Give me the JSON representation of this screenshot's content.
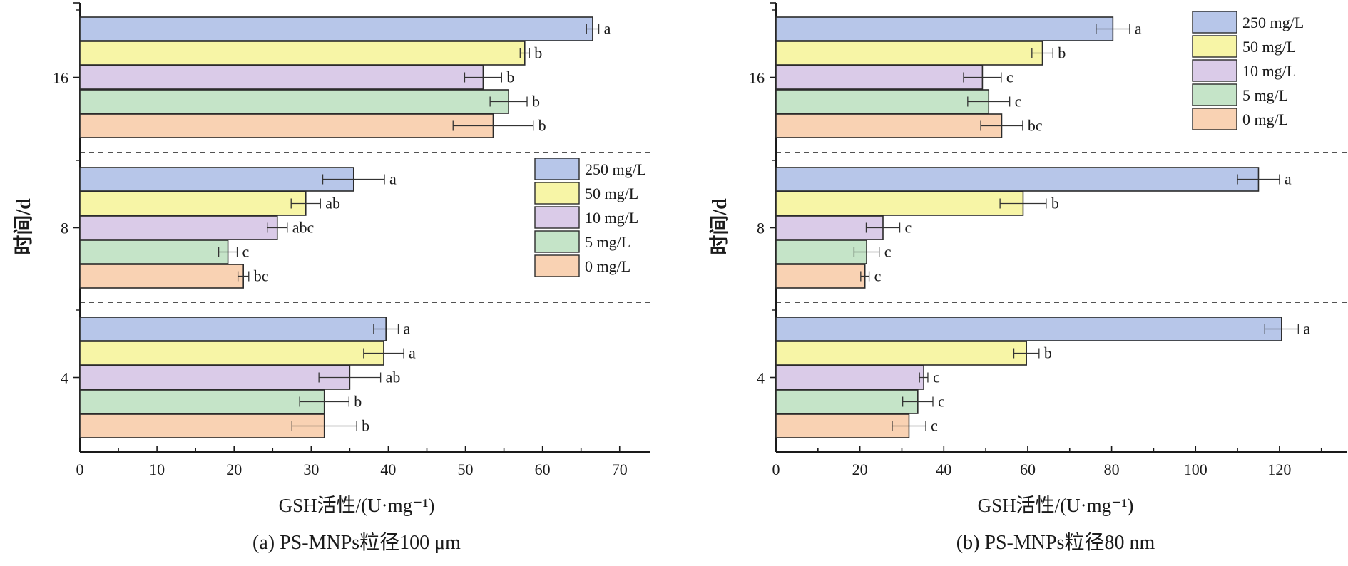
{
  "colors": {
    "250 mg/L": "#b7c6e9",
    "50 mg/L": "#f7f5a6",
    "10 mg/L": "#dacbe8",
    "5 mg/L": "#c5e4c8",
    "0 mg/L": "#f9d2b3",
    "axis": "#1a1a1a",
    "bar_stroke": "#2b2b2b"
  },
  "legend_entries": [
    "250 mg/L",
    "50 mg/L",
    "10 mg/L",
    "5 mg/L",
    "0 mg/L"
  ],
  "chart_data": [
    {
      "type": "bar",
      "orientation": "horizontal",
      "caption": "(a) PS-MNPs粒径100 μm",
      "xlabel": "GSH活性/(U·mg⁻¹)",
      "ylabel": "时间/d",
      "xlim": [
        0,
        74
      ],
      "xticks": [
        0,
        10,
        20,
        30,
        40,
        50,
        60,
        70
      ],
      "categories": [
        "4",
        "8",
        "16"
      ],
      "legend_position": "right-middle",
      "series": [
        {
          "name": "250 mg/L",
          "values": [
            39.7,
            35.5,
            66.5
          ],
          "errors": [
            1.6,
            4.0,
            0.8
          ],
          "letters": [
            "a",
            "a",
            "a"
          ]
        },
        {
          "name": "50 mg/L",
          "values": [
            39.4,
            29.3,
            57.7
          ],
          "errors": [
            2.6,
            1.9,
            0.6
          ],
          "letters": [
            "a",
            "ab",
            "b"
          ]
        },
        {
          "name": "10 mg/L",
          "values": [
            35.0,
            25.6,
            52.3
          ],
          "errors": [
            4.0,
            1.3,
            2.4
          ],
          "letters": [
            "ab",
            "abc",
            "b"
          ]
        },
        {
          "name": "5 mg/L",
          "values": [
            31.7,
            19.2,
            55.6
          ],
          "errors": [
            3.2,
            1.2,
            2.4
          ],
          "letters": [
            "b",
            "c",
            "b"
          ]
        },
        {
          "name": "0 mg/L",
          "values": [
            31.7,
            21.2,
            53.6
          ],
          "errors": [
            4.2,
            0.7,
            5.2
          ],
          "letters": [
            "b",
            "bc",
            "b"
          ]
        }
      ]
    },
    {
      "type": "bar",
      "orientation": "horizontal",
      "caption": "(b) PS-MNPs粒径80 nm",
      "xlabel": "GSH活性/(U·mg⁻¹)",
      "ylabel": "时间/d",
      "xlim": [
        0,
        136
      ],
      "xticks": [
        0,
        20,
        40,
        60,
        80,
        100,
        120
      ],
      "categories": [
        "4",
        "8",
        "16"
      ],
      "legend_position": "top-right",
      "series": [
        {
          "name": "250 mg/L",
          "values": [
            120.5,
            115.0,
            80.3
          ],
          "errors": [
            4.0,
            5.0,
            4.0
          ],
          "letters": [
            "a",
            "a",
            "a"
          ]
        },
        {
          "name": "50 mg/L",
          "values": [
            59.7,
            58.9,
            63.5
          ],
          "errors": [
            3.0,
            5.5,
            2.5
          ],
          "letters": [
            "b",
            "b",
            "b"
          ]
        },
        {
          "name": "10 mg/L",
          "values": [
            35.2,
            25.5,
            49.2
          ],
          "errors": [
            1.0,
            4.0,
            4.5
          ],
          "letters": [
            "c",
            "c",
            "c"
          ]
        },
        {
          "name": "5 mg/L",
          "values": [
            33.8,
            21.6,
            50.7
          ],
          "errors": [
            3.6,
            3.0,
            5.0
          ],
          "letters": [
            "c",
            "c",
            "c"
          ]
        },
        {
          "name": "0 mg/L",
          "values": [
            31.7,
            21.2,
            53.8
          ],
          "errors": [
            4.0,
            1.0,
            5.0
          ],
          "letters": [
            "c",
            "c",
            "bc"
          ]
        }
      ]
    }
  ]
}
